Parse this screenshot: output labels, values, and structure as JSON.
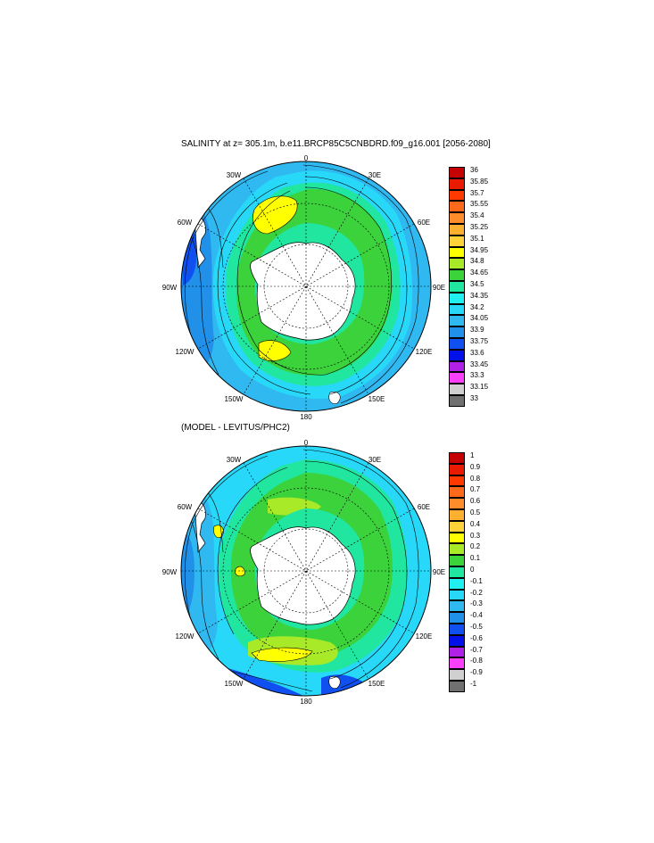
{
  "panel1": {
    "title": "SALINITY at z= 305.1m, b.e11.BRCP85C5CNBDRD.f09_g16.001 [2056-2080]",
    "lon_labels": [
      "0",
      "30E",
      "60E",
      "90E",
      "120E",
      "150E",
      "180",
      "150W",
      "120W",
      "90W",
      "60W",
      "30W"
    ],
    "colorbar": {
      "labels": [
        "36",
        "35.85",
        "35.7",
        "35.55",
        "35.4",
        "35.25",
        "35.1",
        "34.95",
        "34.8",
        "34.65",
        "34.5",
        "34.35",
        "34.2",
        "34.05",
        "33.9",
        "33.75",
        "33.6",
        "33.45",
        "33.3",
        "33.15",
        "33"
      ],
      "colors": [
        "#c40000",
        "#e81a00",
        "#ff3a00",
        "#ff6a1a",
        "#ff8c2a",
        "#ffb030",
        "#ffd23a",
        "#ffff00",
        "#a8ea28",
        "#3cd23c",
        "#20e6a0",
        "#20f0f0",
        "#28d8f8",
        "#30b8f0",
        "#2090e8",
        "#1050f0",
        "#0010e8",
        "#b020e8",
        "#ff40ff",
        "#d0d0d0",
        "#707070"
      ]
    }
  },
  "panel2": {
    "title": "(MODEL - LEVITUS/PHC2)",
    "lon_labels": [
      "0",
      "30E",
      "60E",
      "90E",
      "120E",
      "150E",
      "180",
      "150W",
      "120W",
      "90W",
      "60W",
      "30W"
    ],
    "colorbar": {
      "labels": [
        "1",
        "0.9",
        "0.8",
        "0.7",
        "0.6",
        "0.5",
        "0.4",
        "0.3",
        "0.2",
        "0.1",
        "0",
        "-0.1",
        "-0.2",
        "-0.3",
        "-0.4",
        "-0.5",
        "-0.6",
        "-0.7",
        "-0.8",
        "-0.9",
        "-1"
      ],
      "colors": [
        "#c40000",
        "#e81a00",
        "#ff3a00",
        "#ff6a1a",
        "#ff8c2a",
        "#ffb030",
        "#ffd23a",
        "#ffff00",
        "#a8ea28",
        "#3cd23c",
        "#20e6a0",
        "#20f0f0",
        "#28d8f8",
        "#30b8f0",
        "#2090e8",
        "#1050f0",
        "#0010e8",
        "#b020e8",
        "#ff40ff",
        "#d0d0d0",
        "#707070"
      ]
    }
  }
}
